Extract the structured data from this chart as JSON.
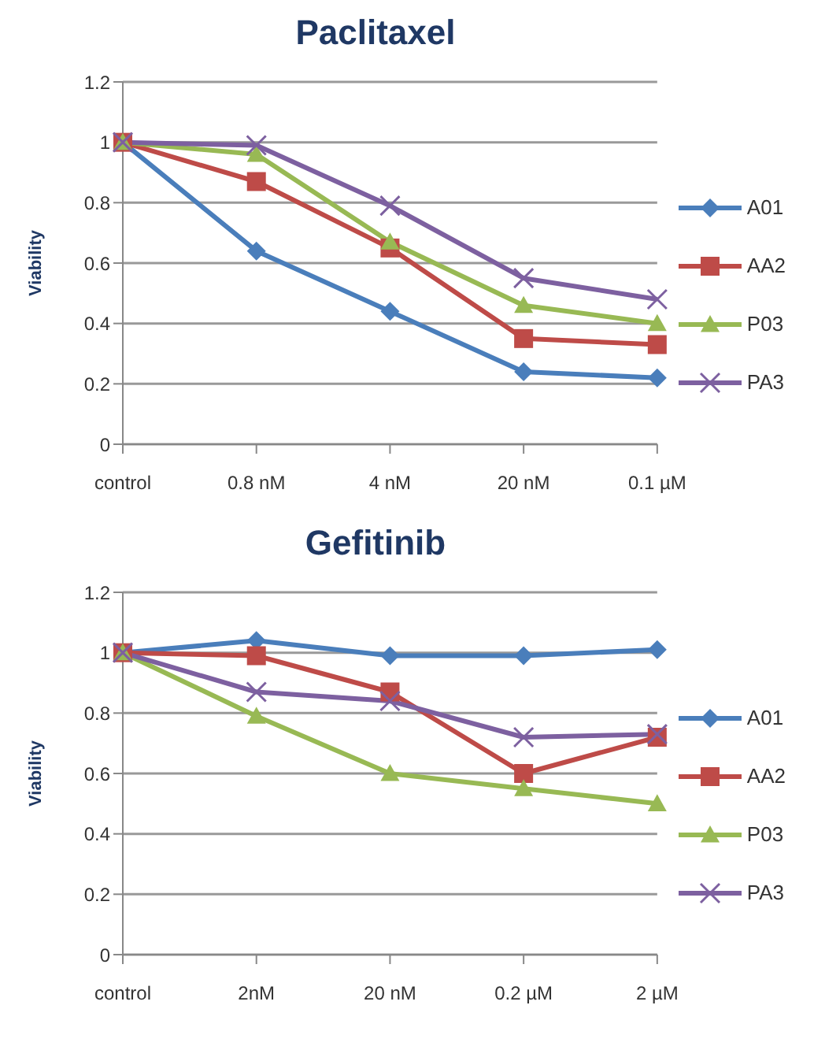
{
  "chart_data": [
    {
      "type": "line",
      "title": "Paclitaxel",
      "ylabel": "Viability",
      "categories": [
        "control",
        "0.8 nM",
        "4 nM",
        "20 nM",
        "0.1 µM"
      ],
      "ylim": [
        0,
        1.2
      ],
      "yticks": [
        0,
        0.2,
        0.4,
        0.6,
        0.8,
        1,
        1.2
      ],
      "grid": "y",
      "legend": "right",
      "series": [
        {
          "name": "A01",
          "color": "#4a7ebb",
          "marker": "diamond",
          "values": [
            1,
            0.64,
            0.44,
            0.24,
            0.22
          ]
        },
        {
          "name": "AA2",
          "color": "#be4b48",
          "marker": "square",
          "values": [
            1,
            0.87,
            0.65,
            0.35,
            0.33
          ]
        },
        {
          "name": "P03",
          "color": "#98b954",
          "marker": "triangle",
          "values": [
            1,
            0.96,
            0.67,
            0.46,
            0.4
          ]
        },
        {
          "name": "PA3",
          "color": "#7d60a0",
          "marker": "cross",
          "values": [
            1,
            0.99,
            0.79,
            0.55,
            0.48
          ]
        }
      ]
    },
    {
      "type": "line",
      "title": "Gefitinib",
      "ylabel": "Viability",
      "categories": [
        "control",
        "2nM",
        "20 nM",
        "0.2 µM",
        "2 µM"
      ],
      "ylim": [
        0,
        1.2
      ],
      "yticks": [
        0,
        0.2,
        0.4,
        0.6,
        0.8,
        1,
        1.2
      ],
      "grid": "y",
      "legend": "right",
      "series": [
        {
          "name": "A01",
          "color": "#4a7ebb",
          "marker": "diamond",
          "values": [
            1,
            1.04,
            0.99,
            0.99,
            1.01
          ]
        },
        {
          "name": "AA2",
          "color": "#be4b48",
          "marker": "square",
          "values": [
            1,
            0.99,
            0.87,
            0.6,
            0.72
          ]
        },
        {
          "name": "P03",
          "color": "#98b954",
          "marker": "triangle",
          "values": [
            1,
            0.79,
            0.6,
            0.55,
            0.5
          ]
        },
        {
          "name": "PA3",
          "color": "#7d60a0",
          "marker": "cross",
          "values": [
            1,
            0.87,
            0.84,
            0.72,
            0.73
          ]
        }
      ]
    }
  ]
}
